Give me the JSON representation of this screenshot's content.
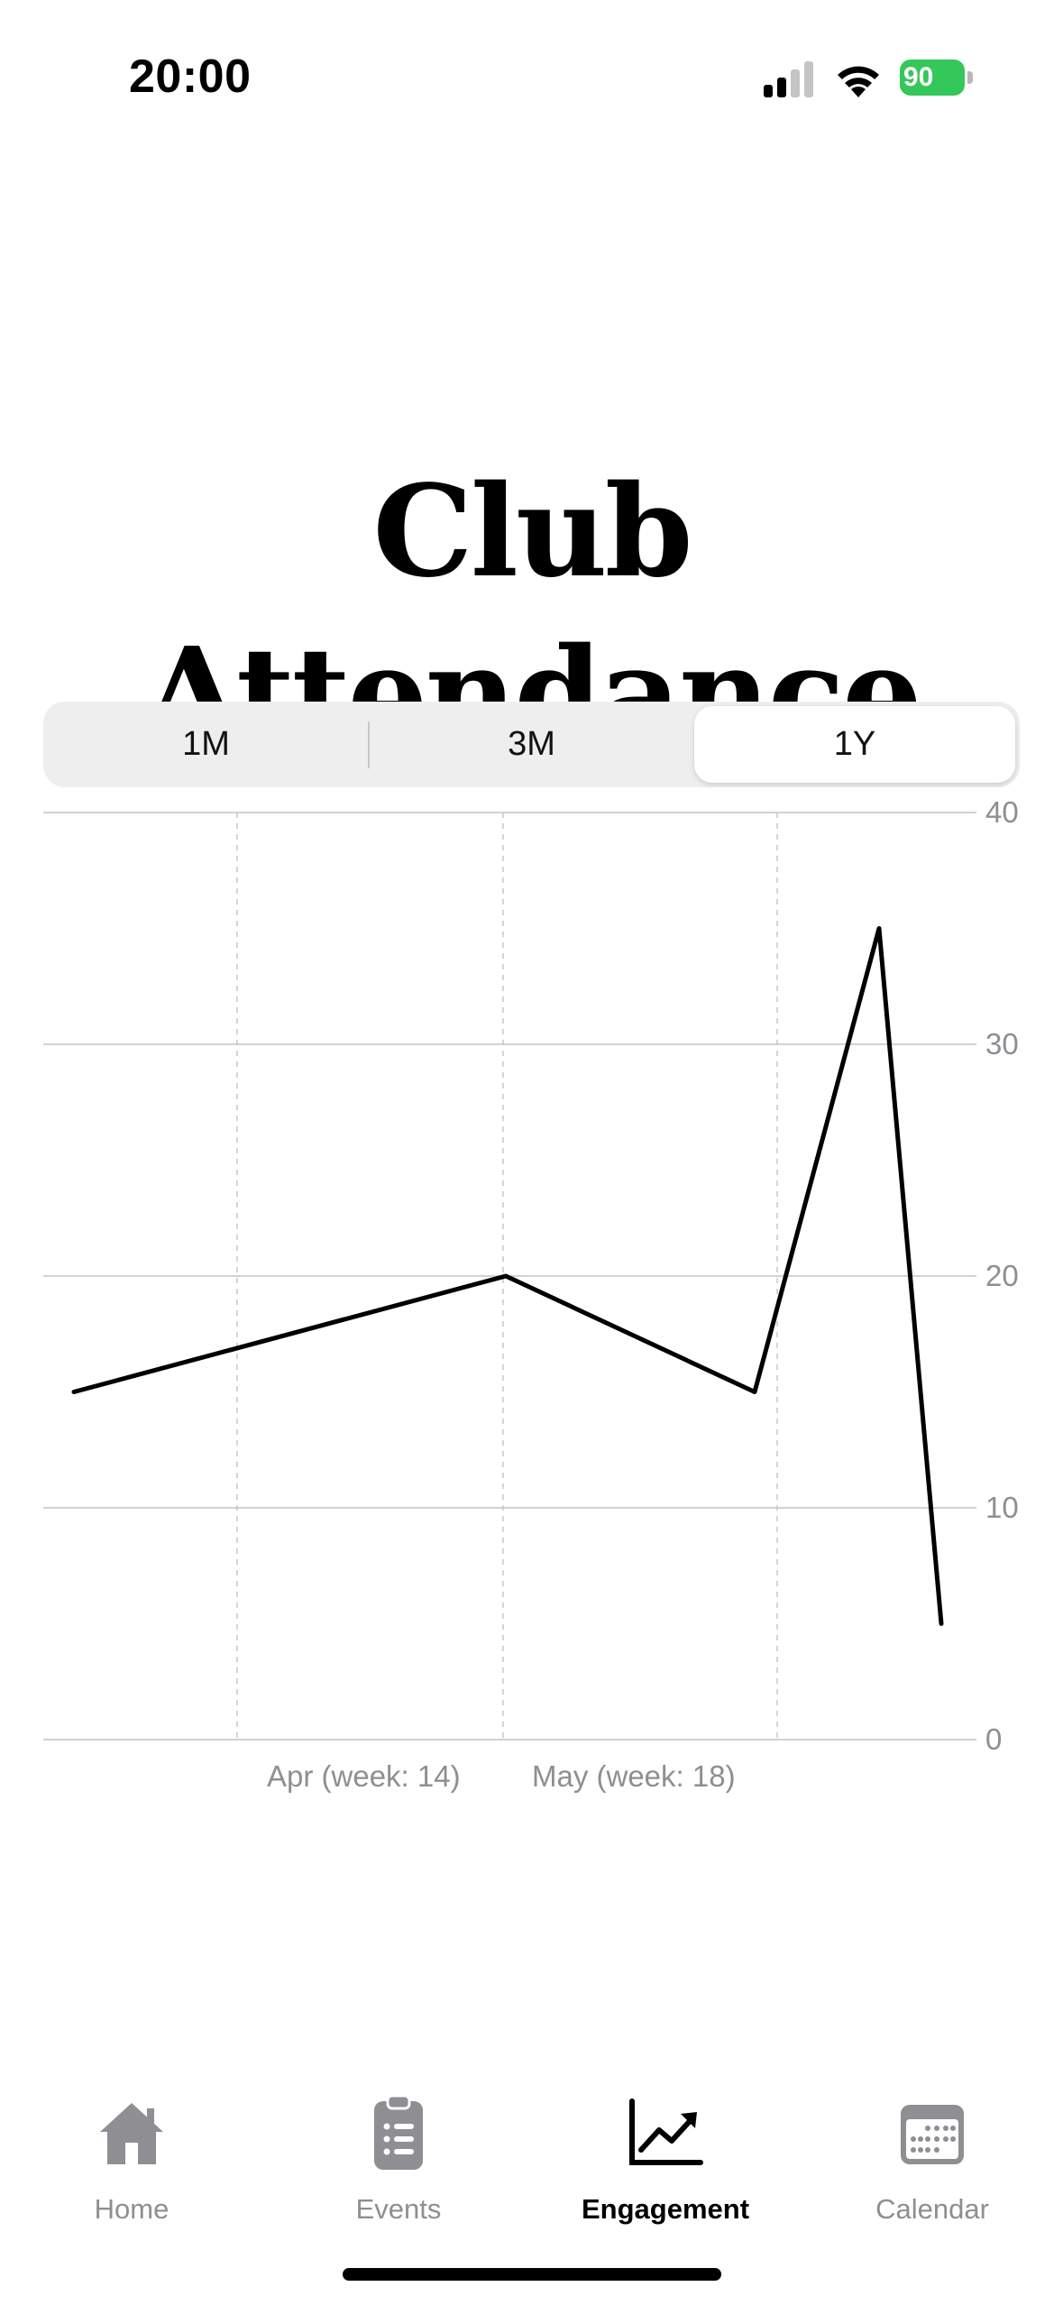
{
  "status_bar": {
    "time": "20:00",
    "battery": "90",
    "battery_color": "#34c759"
  },
  "title": "Club Attendance",
  "segmented_control": {
    "options": [
      "1M",
      "3M",
      "1Y"
    ],
    "selected": "1Y"
  },
  "chart_data": {
    "type": "line",
    "x": [
      "",
      "",
      "",
      "",
      ""
    ],
    "x_tick_labels": [
      "Apr (week: 14)",
      "May (week: 18)"
    ],
    "series": [
      {
        "values": [
          15,
          20,
          15,
          35,
          5
        ]
      }
    ],
    "y_ticks": [
      0,
      10,
      20,
      30,
      40
    ],
    "ylim": [
      0,
      40
    ],
    "y_axis_position": "right",
    "grid": true,
    "line_color": "#000000"
  },
  "tab_bar": {
    "items": [
      {
        "label": "Home",
        "icon": "house-icon"
      },
      {
        "label": "Events",
        "icon": "clipboard-list-icon"
      },
      {
        "label": "Engagement",
        "icon": "chart-line-uptrend-icon"
      },
      {
        "label": "Calendar",
        "icon": "calendar-icon"
      }
    ],
    "active": "Engagement",
    "inactive_color": "#8e8e93",
    "active_color": "#000000"
  }
}
